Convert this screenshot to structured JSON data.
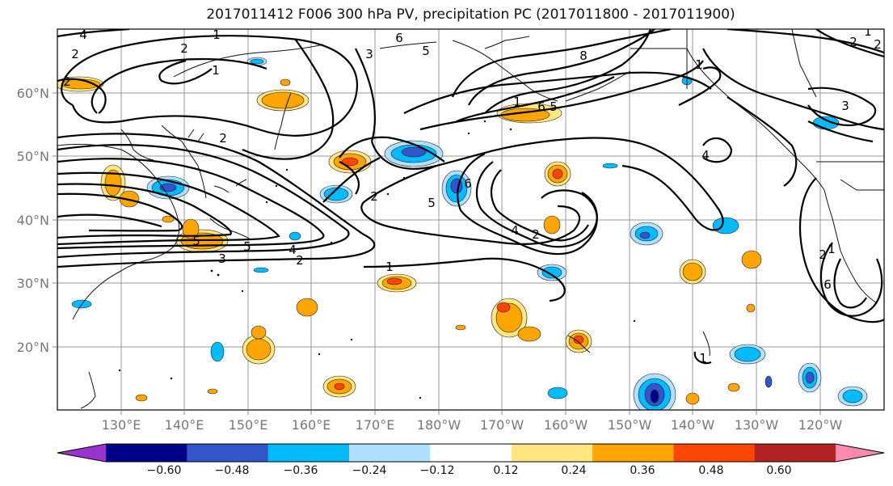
{
  "title": "2017011412 F006 300 hPa PV, precipitation PC (2017011800 - 2017011900)",
  "axes": {
    "lat_labels": [
      "60°N",
      "50°N",
      "40°N",
      "30°N",
      "20°N"
    ],
    "lon_labels": [
      "130°E",
      "140°E",
      "150°E",
      "160°E",
      "170°E",
      "180°W",
      "170°W",
      "160°W",
      "150°W",
      "140°W",
      "130°W",
      "120°W"
    ]
  },
  "contour_labels": [
    "2",
    "4",
    "1",
    "2",
    "6",
    "5",
    "3",
    "8",
    "1",
    "6",
    "5",
    "1",
    "3",
    "2",
    "2",
    "5",
    "6",
    "2",
    "1",
    "5",
    "4",
    "2",
    "3",
    "4",
    "5",
    "2",
    "4",
    "2",
    "1",
    "2",
    "1",
    "1",
    "6",
    "1",
    "2"
  ],
  "colorbar": {
    "colors": [
      "#9933cc",
      "#000088",
      "#3355cc",
      "#00bbff",
      "#b0e0ff",
      "#ffffff",
      "#ffe680",
      "#ffa500",
      "#ff4500",
      "#b22222",
      "#ff88b0"
    ],
    "tick_labels": [
      "−0.60",
      "−0.48",
      "−0.36",
      "−0.24",
      "−0.12",
      "0.12",
      "0.24",
      "0.36",
      "0.48",
      "0.60"
    ]
  }
}
